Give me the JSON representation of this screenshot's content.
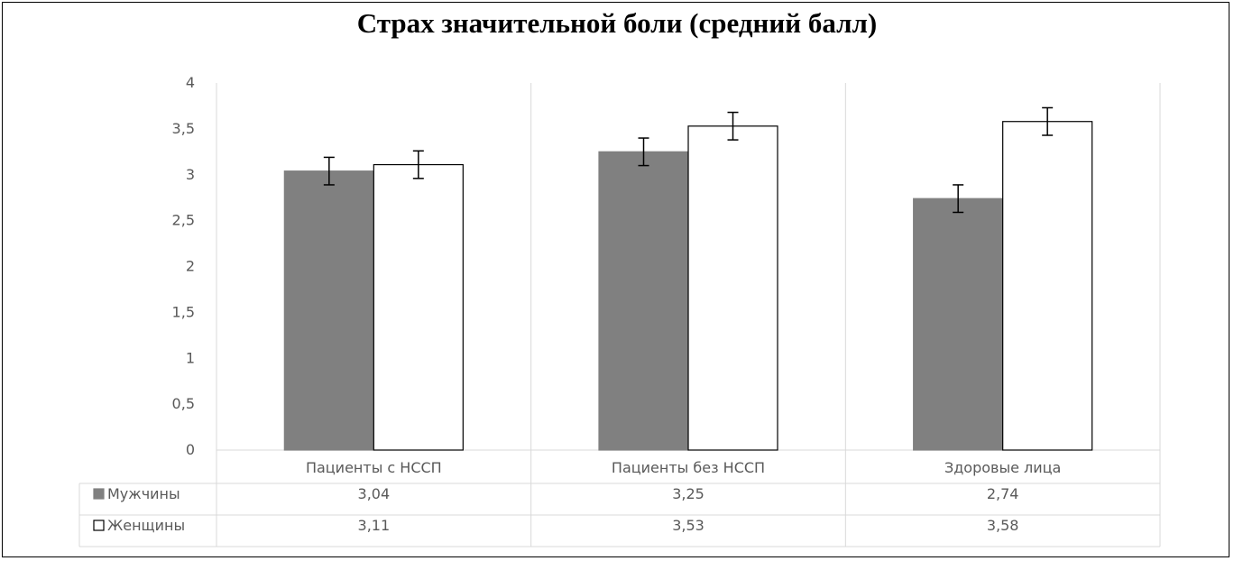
{
  "chart_data": {
    "type": "bar",
    "title": "Страх значительной боли (средний балл)",
    "categories": [
      "Пациенты с НССП",
      "Пациенты без НССП",
      "Здоровые лица"
    ],
    "series": [
      {
        "name": "Мужчины",
        "values": [
          3.04,
          3.25,
          2.74
        ],
        "value_labels": [
          "3,04",
          "3,25",
          "2,74"
        ],
        "error": [
          0.15,
          0.15,
          0.15
        ],
        "color": "#808080"
      },
      {
        "name": "Женщины",
        "values": [
          3.11,
          3.53,
          3.58
        ],
        "value_labels": [
          "3,11",
          "3,53",
          "3,58"
        ],
        "error": [
          0.15,
          0.15,
          0.15
        ],
        "color": "#ffffff"
      }
    ],
    "ylim": [
      0,
      4
    ],
    "yticks": [
      0,
      0.5,
      1,
      1.5,
      2,
      2.5,
      3,
      3.5,
      4
    ],
    "ytick_labels": [
      "0",
      "0,5",
      "1",
      "1,5",
      "2",
      "2,5",
      "3",
      "3,5",
      "4"
    ],
    "legend": "data-table",
    "grid": "vertical category separators"
  }
}
